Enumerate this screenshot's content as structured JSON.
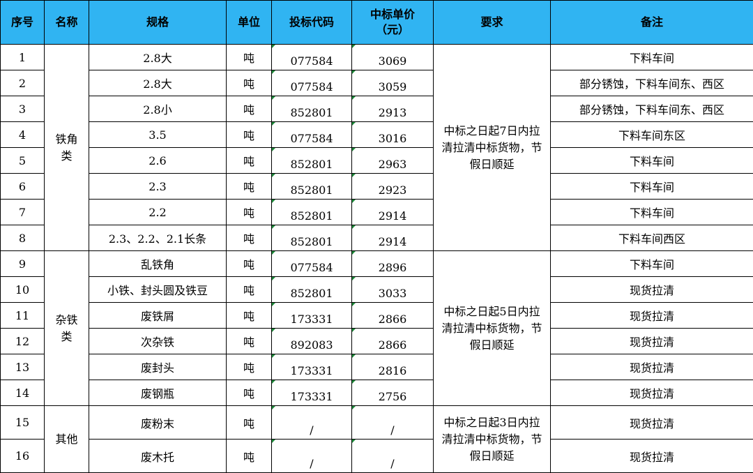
{
  "table": {
    "header": [
      "序号",
      "名称",
      "规格",
      "单位",
      "投标代码",
      "中标单价\n（元）",
      "要求",
      "备注"
    ],
    "groups": [
      {
        "name": "铁角类",
        "requirement": "中标之日起7日内拉清拉清中标货物，节假日顺延",
        "rows": [
          {
            "no": 1,
            "spec": "2.8大",
            "unit": "吨",
            "code": "077584",
            "price": 3069,
            "remark": "下料车间"
          },
          {
            "no": 2,
            "spec": "2.8大",
            "unit": "吨",
            "code": "077584",
            "price": 3059,
            "remark": "部分锈蚀，下料车间东、西区"
          },
          {
            "no": 3,
            "spec": "2.8小",
            "unit": "吨",
            "code": "852801",
            "price": 2913,
            "remark": "部分锈蚀，下料车间东、西区"
          },
          {
            "no": 4,
            "spec": "3.5",
            "unit": "吨",
            "code": "077584",
            "price": 3016,
            "remark": "下料车间东区"
          },
          {
            "no": 5,
            "spec": "2.6",
            "unit": "吨",
            "code": "852801",
            "price": 2963,
            "remark": "下料车间"
          },
          {
            "no": 6,
            "spec": "2.3",
            "unit": "吨",
            "code": "852801",
            "price": 2923,
            "remark": "下料车间"
          },
          {
            "no": 7,
            "spec": "2.2",
            "unit": "吨",
            "code": "852801",
            "price": 2914,
            "remark": "下料车间"
          },
          {
            "no": 8,
            "spec": "2.3、2.2、2.1长条",
            "unit": "吨",
            "code": "852801",
            "price": 2914,
            "remark": "下料车间西区"
          }
        ]
      },
      {
        "name": "杂铁类",
        "requirement": "中标之日起5日内拉清拉清中标货物，节假日顺延",
        "rows": [
          {
            "no": 9,
            "spec": "乱铁角",
            "unit": "吨",
            "code": "077584",
            "price": 2896,
            "remark": "下料车间"
          },
          {
            "no": 10,
            "spec": "小铁、封头圆及铁豆",
            "unit": "吨",
            "code": "852801",
            "price": 3033,
            "remark": "现货拉清"
          },
          {
            "no": 11,
            "spec": "废铁屑",
            "unit": "吨",
            "code": "173331",
            "price": 2866,
            "remark": "现货拉清"
          },
          {
            "no": 12,
            "spec": "次杂铁",
            "unit": "吨",
            "code": "892083",
            "price": 2866,
            "remark": "现货拉清"
          },
          {
            "no": 13,
            "spec": "废封头",
            "unit": "吨",
            "code": "173331",
            "price": 2816,
            "remark": "现货拉清"
          },
          {
            "no": 14,
            "spec": "废钢瓶",
            "unit": "吨",
            "code": "173331",
            "price": 2756,
            "remark": "现货拉清"
          }
        ]
      },
      {
        "name": "其他",
        "requirement": "中标之日起3日内拉清拉清中标货物，节假日顺延",
        "rows": [
          {
            "no": 15,
            "spec": "废粉末",
            "unit": "吨",
            "code": "/",
            "price": "/",
            "remark": "现货拉清"
          },
          {
            "no": 16,
            "spec": "废木托",
            "unit": "吨",
            "code": "/",
            "price": "/",
            "remark": "现货拉清"
          }
        ]
      }
    ]
  }
}
